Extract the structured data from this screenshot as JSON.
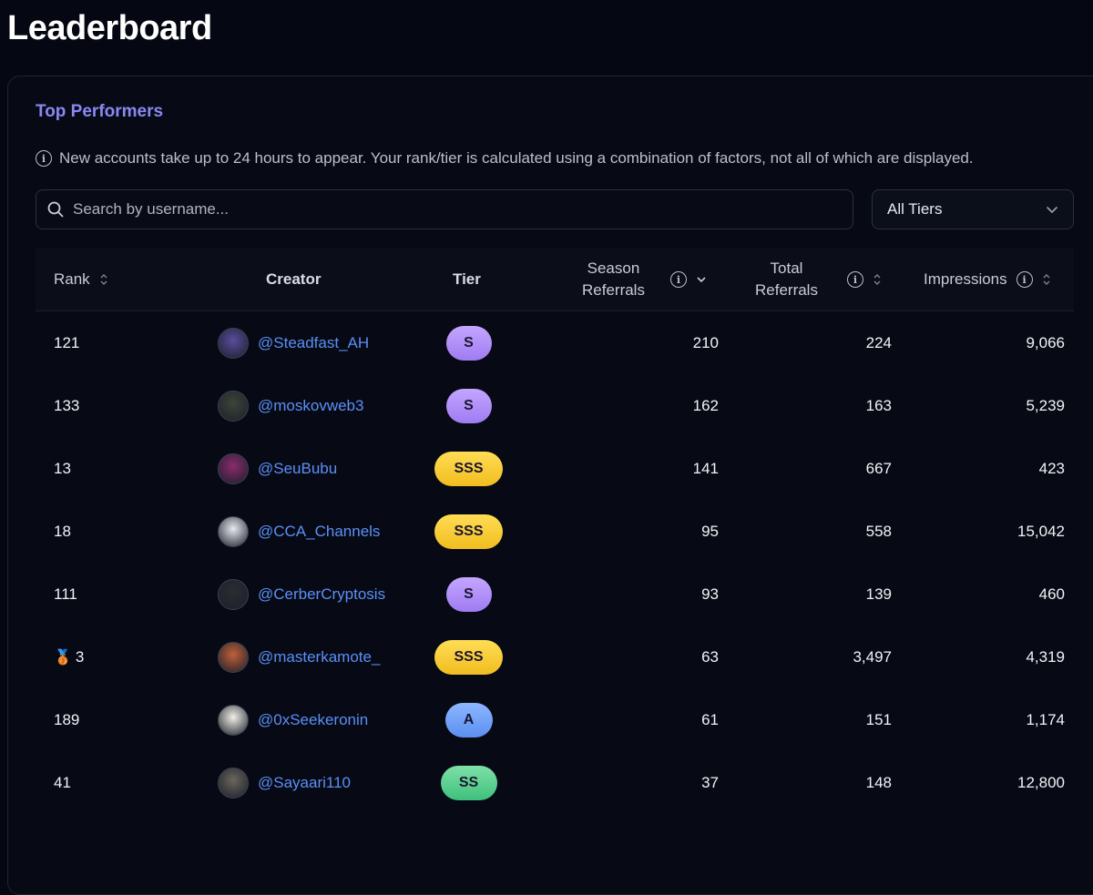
{
  "page": {
    "title": "Leaderboard"
  },
  "section": {
    "title": "Top Performers",
    "notice": "New accounts take up to 24 hours to appear. Your rank/tier is calculated using a combination of factors, not all of which are displayed."
  },
  "search": {
    "placeholder": "Search by username...",
    "value": ""
  },
  "filter": {
    "selected": "All Tiers"
  },
  "table": {
    "headers": {
      "rank": "Rank",
      "creator": "Creator",
      "tier": "Tier",
      "season_line1": "Season",
      "season_line2": "Referrals",
      "total_line1": "Total",
      "total_line2": "Referrals",
      "impressions": "Impressions"
    },
    "rows": [
      {
        "rank": "121",
        "medal": "",
        "username": "@Steadfast_AH",
        "tier": "S",
        "season": "210",
        "total": "224",
        "impressions": "9,066",
        "avatar_color": "#5a4c9c"
      },
      {
        "rank": "133",
        "medal": "",
        "username": "@moskovweb3",
        "tier": "S",
        "season": "162",
        "total": "163",
        "impressions": "5,239",
        "avatar_color": "#3d4538"
      },
      {
        "rank": "13",
        "medal": "",
        "username": "@SeuBubu",
        "tier": "SSS",
        "season": "141",
        "total": "667",
        "impressions": "423",
        "avatar_color": "#8a2b6e"
      },
      {
        "rank": "18",
        "medal": "",
        "username": "@CCA_Channels",
        "tier": "SSS",
        "season": "95",
        "total": "558",
        "impressions": "15,042",
        "avatar_color": "#e9e9f0"
      },
      {
        "rank": "111",
        "medal": "",
        "username": "@CerberCryptosis",
        "tier": "S",
        "season": "93",
        "total": "139",
        "impressions": "460",
        "avatar_color": "#2a2d31"
      },
      {
        "rank": "3",
        "medal": "🥉",
        "username": "@masterkamote_",
        "tier": "SSS",
        "season": "63",
        "total": "3,497",
        "impressions": "4,319",
        "avatar_color": "#c0603a"
      },
      {
        "rank": "189",
        "medal": "",
        "username": "@0xSeekeronin",
        "tier": "A",
        "season": "61",
        "total": "151",
        "impressions": "1,174",
        "avatar_color": "#f2efe6"
      },
      {
        "rank": "41",
        "medal": "",
        "username": "@Sayaari110",
        "tier": "SS",
        "season": "37",
        "total": "148",
        "impressions": "12,800",
        "avatar_color": "#6b655c"
      }
    ]
  },
  "tier_styles": {
    "S": {
      "color_top": "#c4a5ff",
      "color_bottom": "#9f7cf2",
      "width": 50
    },
    "SS": {
      "color_top": "#7ee0a8",
      "color_bottom": "#3fc07c",
      "width": 62
    },
    "SSS": {
      "color_top": "#ffdd55",
      "color_bottom": "#f1bd1f",
      "width": 75
    },
    "A": {
      "color_top": "#8db6ff",
      "color_bottom": "#5b8ff0",
      "width": 52
    }
  }
}
